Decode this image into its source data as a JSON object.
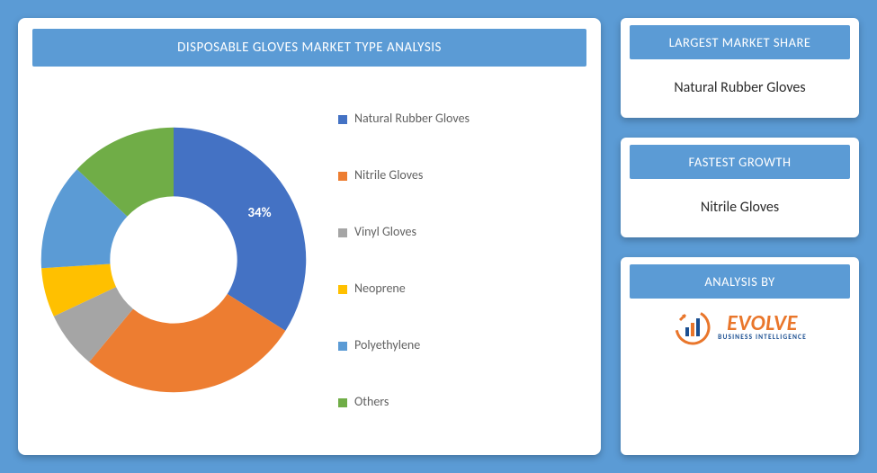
{
  "background_color": "#5b9bd5",
  "panel_color": "#ffffff",
  "accent_color": "#5b9bd5",
  "text_muted": "#616161",
  "chart": {
    "title": "DISPOSABLE GLOVES MARKET TYPE ANALYSIS",
    "type": "donut",
    "inner_radius_pct": 48,
    "slices": [
      {
        "label": "Natural Rubber Gloves",
        "value": 34,
        "color": "#4472c4",
        "show_label": "34%"
      },
      {
        "label": "Nitrile Gloves",
        "value": 27,
        "color": "#ed7d31"
      },
      {
        "label": "Vinyl Gloves",
        "value": 7,
        "color": "#a5a5a5"
      },
      {
        "label": "Neoprene",
        "value": 6,
        "color": "#ffc000"
      },
      {
        "label": "Polyethylene",
        "value": 13,
        "color": "#5b9bd5"
      },
      {
        "label": "Others",
        "value": 13,
        "color": "#70ad47"
      }
    ],
    "legend_marker_shape": "square"
  },
  "cards": {
    "largest_share": {
      "title": "LARGEST MARKET SHARE",
      "value": "Natural Rubber Gloves"
    },
    "fastest_growth": {
      "title": "FASTEST GROWTH",
      "value": "Nitrile Gloves"
    },
    "analysis_by": {
      "title": "ANALYSIS BY",
      "logo_main": "EVOLVE",
      "logo_sub": "BUSINESS INTELLIGENCE",
      "logo_color": "#e9762b",
      "logo_sub_color": "#1b4f91"
    }
  }
}
